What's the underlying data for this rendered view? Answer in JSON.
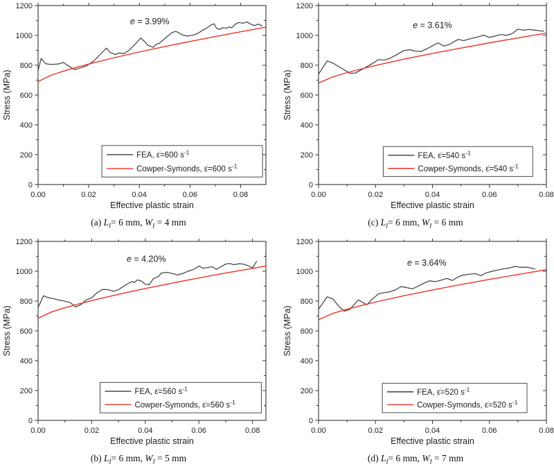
{
  "figure": {
    "background": "#ffffff",
    "colors": {
      "fea": "#3a3a3a",
      "cowper": "#ed3124",
      "axis": "#333333"
    },
    "xlabel": "Effective plastic strain",
    "ylabel": "Stress (MPa)"
  },
  "chart_data": [
    {
      "id": "a",
      "type": "line",
      "xlabel": "Effective plastic strain",
      "ylabel": "Stress (MPa)",
      "xlim": [
        0,
        0.09
      ],
      "ylim": [
        0,
        1200
      ],
      "x_ticks": [
        {
          "v": 0,
          "label": "0.00"
        },
        {
          "v": 0.02,
          "label": "0.02"
        },
        {
          "v": 0.04,
          "label": "0.04"
        },
        {
          "v": 0.06,
          "label": "0.06"
        },
        {
          "v": 0.08,
          "label": "0.08"
        }
      ],
      "x_minor": [
        0.01,
        0.03,
        0.05,
        0.07
      ],
      "y_ticks": [
        {
          "v": 0,
          "label": "0"
        },
        {
          "v": 200,
          "label": "200"
        },
        {
          "v": 400,
          "label": "400"
        },
        {
          "v": 600,
          "label": "600"
        },
        {
          "v": 800,
          "label": "800"
        },
        {
          "v": 1000,
          "label": "1000"
        },
        {
          "v": 1200,
          "label": "1200"
        }
      ],
      "y_minor": [
        100,
        300,
        500,
        700,
        900,
        1100
      ],
      "annotation": {
        "italic": "e",
        "rest": " = 3.99%",
        "x": 0.49,
        "y": 0.105
      },
      "legend": {
        "x0": 0.28,
        "y0": 0.782,
        "x1": 0.985,
        "y1": 0.958,
        "entries": [
          {
            "color_key": "fea",
            "text": "FEA, ε̇=600 s",
            "sup": "-1"
          },
          {
            "color_key": "cowper",
            "text": "Cowper-Symonds, ε̇=600 s",
            "sup": "-1"
          }
        ]
      },
      "series": [
        {
          "name": "FEA",
          "color_key": "fea",
          "x": [
            0,
            0.0012,
            0.003,
            0.005,
            0.008,
            0.01,
            0.0125,
            0.0145,
            0.016,
            0.019,
            0.022,
            0.0245,
            0.027,
            0.0285,
            0.0305,
            0.032,
            0.034,
            0.036,
            0.038,
            0.0405,
            0.042,
            0.0435,
            0.0455,
            0.0465,
            0.048,
            0.0505,
            0.053,
            0.0545,
            0.056,
            0.0575,
            0.059,
            0.061,
            0.063,
            0.065,
            0.0665,
            0.0685,
            0.0695,
            0.0705,
            0.0715,
            0.073,
            0.0745,
            0.0755,
            0.0765,
            0.078,
            0.0795,
            0.081,
            0.0825,
            0.084,
            0.0855,
            0.087,
            0.0885
          ],
          "y": [
            765,
            845,
            810,
            805,
            808,
            818,
            790,
            770,
            778,
            795,
            828,
            872,
            915,
            885,
            872,
            882,
            878,
            902,
            935,
            982,
            960,
            932,
            920,
            938,
            948,
            985,
            1020,
            1027,
            1012,
            1000,
            996,
            1001,
            1012,
            1035,
            1048,
            1072,
            1077,
            1048,
            1040,
            1051,
            1048,
            1057,
            1051,
            1076,
            1087,
            1081,
            1091,
            1075,
            1066,
            1076,
            1063
          ]
        },
        {
          "name": "Cowper-Symonds",
          "color_key": "cowper",
          "x": [
            0,
            0.005,
            0.01,
            0.015,
            0.02,
            0.03,
            0.04,
            0.05,
            0.06,
            0.07,
            0.08,
            0.09
          ],
          "y": [
            690,
            732,
            760,
            785,
            808,
            850,
            889,
            925,
            959,
            992,
            1024,
            1055
          ]
        }
      ],
      "caption": [
        [
          "t",
          "(a) "
        ],
        [
          "vi",
          "L",
          "I"
        ],
        [
          "t",
          "= 6 mm, "
        ],
        [
          "vi",
          "W",
          "I"
        ],
        [
          "t",
          " = 4 mm"
        ]
      ]
    },
    {
      "id": "c",
      "type": "line",
      "xlabel": "Effective plastic strain",
      "ylabel": "Stress (MPa)",
      "xlim": [
        0,
        0.08
      ],
      "ylim": [
        0,
        1200
      ],
      "x_ticks": [
        {
          "v": 0,
          "label": "0.00"
        },
        {
          "v": 0.02,
          "label": "0.02"
        },
        {
          "v": 0.04,
          "label": "0.04"
        },
        {
          "v": 0.06,
          "label": "0.06"
        },
        {
          "v": 0.08,
          "label": "0.08"
        }
      ],
      "x_minor": [
        0.01,
        0.03,
        0.05,
        0.07
      ],
      "y_ticks": [
        {
          "v": 0,
          "label": "0"
        },
        {
          "v": 200,
          "label": "200"
        },
        {
          "v": 400,
          "label": "400"
        },
        {
          "v": 600,
          "label": "600"
        },
        {
          "v": 800,
          "label": "800"
        },
        {
          "v": 1000,
          "label": "1000"
        },
        {
          "v": 1200,
          "label": "1200"
        }
      ],
      "y_minor": [
        100,
        300,
        500,
        700,
        900,
        1100
      ],
      "annotation": {
        "italic": "e",
        "rest": " = 3.61%",
        "x": 0.5,
        "y": 0.125
      },
      "legend": {
        "x0": 0.284,
        "y0": 0.788,
        "x1": 0.94,
        "y1": 0.955,
        "entries": [
          {
            "color_key": "fea",
            "text": "FEA, ε̇=540 s",
            "sup": "-1"
          },
          {
            "color_key": "cowper",
            "text": "Cowper-Symonds, ε̇=540 s",
            "sup": "-1"
          }
        ]
      },
      "series": [
        {
          "name": "FEA",
          "color_key": "fea",
          "x": [
            0,
            0.003,
            0.005,
            0.008,
            0.011,
            0.013,
            0.016,
            0.019,
            0.021,
            0.023,
            0.025,
            0.027,
            0.03,
            0.032,
            0.034,
            0.036,
            0.038,
            0.04,
            0.042,
            0.044,
            0.046,
            0.049,
            0.051,
            0.053,
            0.056,
            0.058,
            0.06,
            0.062,
            0.064,
            0.066,
            0.068,
            0.07,
            0.072,
            0.074,
            0.076,
            0.078,
            0.079
          ],
          "y": [
            740,
            828,
            815,
            780,
            746,
            748,
            780,
            812,
            838,
            834,
            846,
            866,
            898,
            904,
            894,
            892,
            910,
            930,
            950,
            928,
            940,
            973,
            965,
            976,
            990,
            1002,
            986,
            996,
            1006,
            1000,
            1012,
            1042,
            1035,
            1040,
            1035,
            1030,
            1028
          ]
        },
        {
          "name": "Cowper-Symonds",
          "color_key": "cowper",
          "x": [
            0,
            0.005,
            0.01,
            0.015,
            0.02,
            0.03,
            0.04,
            0.05,
            0.06,
            0.07,
            0.08
          ],
          "y": [
            680,
            722,
            750,
            775,
            798,
            841,
            879,
            915,
            950,
            983,
            1015
          ]
        }
      ],
      "caption": [
        [
          "t",
          "(c) "
        ],
        [
          "vi",
          "L",
          "I"
        ],
        [
          "t",
          "= 6 mm, "
        ],
        [
          "vi",
          "W",
          "I"
        ],
        [
          "t",
          " = 6 mm"
        ]
      ]
    },
    {
      "id": "b",
      "type": "line",
      "xlabel": "Effective plastic strain",
      "ylabel": "Stress (MPa)",
      "xlim": [
        0,
        0.085
      ],
      "ylim": [
        0,
        1200
      ],
      "x_ticks": [
        {
          "v": 0,
          "label": "0.00"
        },
        {
          "v": 0.02,
          "label": "0.02"
        },
        {
          "v": 0.04,
          "label": "0.04"
        },
        {
          "v": 0.06,
          "label": "0.06"
        },
        {
          "v": 0.08,
          "label": "0.08"
        }
      ],
      "x_minor": [
        0.01,
        0.03,
        0.05,
        0.07
      ],
      "y_ticks": [
        {
          "v": 0,
          "label": "0"
        },
        {
          "v": 200,
          "label": "200"
        },
        {
          "v": 400,
          "label": "400"
        },
        {
          "v": 600,
          "label": "600"
        },
        {
          "v": 800,
          "label": "800"
        },
        {
          "v": 1000,
          "label": "1000"
        },
        {
          "v": 1200,
          "label": "1200"
        }
      ],
      "y_minor": [
        100,
        300,
        500,
        700,
        900,
        1100
      ],
      "annotation": {
        "italic": "e",
        "rest": " = 4.20%",
        "x": 0.475,
        "y": 0.115
      },
      "legend": {
        "x0": 0.272,
        "y0": 0.788,
        "x1": 0.98,
        "y1": 0.958,
        "entries": [
          {
            "color_key": "fea",
            "text": "FEA, ε̇=560 s",
            "sup": "-1"
          },
          {
            "color_key": "cowper",
            "text": "Cowper-Symonds, ε̇=560 s",
            "sup": "-1"
          }
        ]
      },
      "series": [
        {
          "name": "FEA",
          "color_key": "fea",
          "x": [
            0,
            0.002,
            0.004,
            0.006,
            0.008,
            0.01,
            0.012,
            0.014,
            0.016,
            0.018,
            0.02,
            0.022,
            0.024,
            0.026,
            0.028,
            0.03,
            0.032,
            0.034,
            0.035,
            0.036,
            0.037,
            0.0385,
            0.04,
            0.0415,
            0.043,
            0.045,
            0.046,
            0.048,
            0.05,
            0.052,
            0.054,
            0.056,
            0.058,
            0.06,
            0.0615,
            0.063,
            0.065,
            0.0665,
            0.068,
            0.07,
            0.0715,
            0.073,
            0.075,
            0.0765,
            0.078,
            0.08,
            0.0815
          ],
          "y": [
            757,
            835,
            822,
            815,
            806,
            799,
            790,
            760,
            776,
            808,
            822,
            856,
            878,
            877,
            865,
            876,
            900,
            922,
            930,
            925,
            942,
            934,
            913,
            910,
            950,
            966,
            988,
            992,
            985,
            975,
            985,
            1000,
            1012,
            1035,
            1020,
            1024,
            1030,
            1012,
            1028,
            1048,
            1052,
            1044,
            1050,
            1048,
            1040,
            1022,
            1065
          ]
        },
        {
          "name": "Cowper-Symonds",
          "color_key": "cowper",
          "x": [
            0,
            0.005,
            0.01,
            0.015,
            0.02,
            0.03,
            0.04,
            0.05,
            0.06,
            0.07,
            0.08,
            0.085
          ],
          "y": [
            685,
            727,
            755,
            780,
            803,
            845,
            884,
            920,
            955,
            988,
            1019,
            1035
          ]
        }
      ],
      "caption": [
        [
          "t",
          "(b) "
        ],
        [
          "vi",
          "L",
          "I"
        ],
        [
          "t",
          "= 6 mm, "
        ],
        [
          "vi",
          "W",
          "I"
        ],
        [
          "t",
          " = 5 mm"
        ]
      ]
    },
    {
      "id": "d",
      "type": "line",
      "xlabel": "Effective plastic strain",
      "ylabel": "Stress (MPa)",
      "xlim": [
        0,
        0.08
      ],
      "ylim": [
        0,
        1200
      ],
      "x_ticks": [
        {
          "v": 0,
          "label": "0.00"
        },
        {
          "v": 0.02,
          "label": "0.02"
        },
        {
          "v": 0.04,
          "label": "0.04"
        },
        {
          "v": 0.06,
          "label": "0.06"
        },
        {
          "v": 0.08,
          "label": "0.08"
        }
      ],
      "x_minor": [
        0.01,
        0.03,
        0.05,
        0.07
      ],
      "y_ticks": [
        {
          "v": 0,
          "label": "0"
        },
        {
          "v": 200,
          "label": "200"
        },
        {
          "v": 400,
          "label": "400"
        },
        {
          "v": 600,
          "label": "600"
        },
        {
          "v": 800,
          "label": "800"
        },
        {
          "v": 1000,
          "label": "1000"
        },
        {
          "v": 1200,
          "label": "1200"
        }
      ],
      "y_minor": [
        100,
        300,
        500,
        700,
        900,
        1100
      ],
      "annotation": {
        "italic": "e",
        "rest": " = 3.64%",
        "x": 0.475,
        "y": 0.135
      },
      "legend": {
        "x0": 0.28,
        "y0": 0.793,
        "x1": 0.915,
        "y1": 0.957,
        "entries": [
          {
            "color_key": "fea",
            "text": "FEA, ε̇=520 s",
            "sup": "-1"
          },
          {
            "color_key": "cowper",
            "text": "Cowper-Symonds, ε̇=520 s",
            "sup": "-1"
          }
        ]
      },
      "series": [
        {
          "name": "FEA",
          "color_key": "fea",
          "x": [
            0,
            0.003,
            0.005,
            0.007,
            0.009,
            0.011,
            0.014,
            0.016,
            0.017,
            0.019,
            0.021,
            0.023,
            0.025,
            0.027,
            0.029,
            0.031,
            0.033,
            0.035,
            0.037,
            0.039,
            0.041,
            0.043,
            0.045,
            0.047,
            0.049,
            0.051,
            0.053,
            0.055,
            0.057,
            0.059,
            0.061,
            0.063,
            0.065,
            0.067,
            0.069,
            0.071,
            0.073,
            0.075,
            0.076
          ],
          "y": [
            745,
            828,
            815,
            768,
            732,
            745,
            808,
            785,
            776,
            815,
            848,
            856,
            862,
            875,
            897,
            890,
            882,
            900,
            920,
            936,
            930,
            940,
            952,
            938,
            962,
            975,
            980,
            984,
            970,
            990,
            1000,
            1008,
            1016,
            1022,
            1032,
            1026,
            1028,
            1020,
            1015
          ]
        },
        {
          "name": "Cowper-Symonds",
          "color_key": "cowper",
          "x": [
            0,
            0.005,
            0.01,
            0.015,
            0.02,
            0.03,
            0.04,
            0.05,
            0.06,
            0.07,
            0.08
          ],
          "y": [
            675,
            717,
            745,
            770,
            793,
            836,
            874,
            911,
            945,
            978,
            1010
          ]
        }
      ],
      "caption": [
        [
          "t",
          "(d) "
        ],
        [
          "vi",
          "L",
          "I"
        ],
        [
          "t",
          "= 6 mm, "
        ],
        [
          "vi",
          "W",
          "I"
        ],
        [
          "t",
          " = 7 mm"
        ]
      ]
    }
  ]
}
